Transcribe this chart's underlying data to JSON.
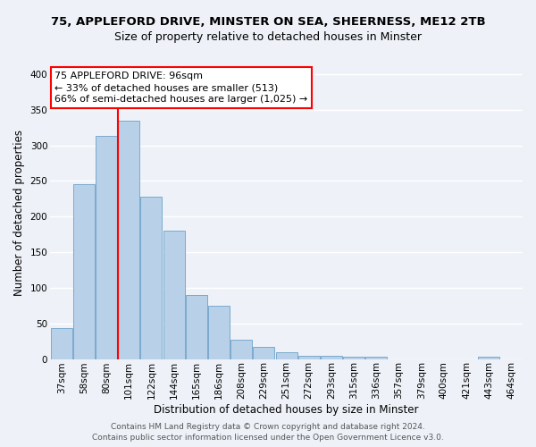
{
  "title": "75, APPLEFORD DRIVE, MINSTER ON SEA, SHEERNESS, ME12 2TB",
  "subtitle": "Size of property relative to detached houses in Minster",
  "xlabel": "Distribution of detached houses by size in Minster",
  "ylabel": "Number of detached properties",
  "bar_labels": [
    "37sqm",
    "58sqm",
    "80sqm",
    "101sqm",
    "122sqm",
    "144sqm",
    "165sqm",
    "186sqm",
    "208sqm",
    "229sqm",
    "251sqm",
    "272sqm",
    "293sqm",
    "315sqm",
    "336sqm",
    "357sqm",
    "379sqm",
    "400sqm",
    "421sqm",
    "443sqm",
    "464sqm"
  ],
  "bar_values": [
    43,
    245,
    313,
    335,
    228,
    180,
    90,
    75,
    27,
    17,
    10,
    4,
    5,
    3,
    3,
    0,
    0,
    0,
    0,
    3,
    0
  ],
  "bar_color": "#b8d0e8",
  "bar_edge_color": "#7aaacf",
  "vline_x": 2.5,
  "vline_color": "red",
  "ylim": [
    0,
    410
  ],
  "yticks": [
    0,
    50,
    100,
    150,
    200,
    250,
    300,
    350,
    400
  ],
  "annotation_line1": "75 APPLEFORD DRIVE: 96sqm",
  "annotation_line2": "← 33% of detached houses are smaller (513)",
  "annotation_line3": "66% of semi-detached houses are larger (1,025) →",
  "footer_line1": "Contains HM Land Registry data © Crown copyright and database right 2024.",
  "footer_line2": "Contains public sector information licensed under the Open Government Licence v3.0.",
  "background_color": "#eef2f8",
  "grid_color": "#ffffff",
  "title_fontsize": 9.5,
  "subtitle_fontsize": 9,
  "xlabel_fontsize": 8.5,
  "ylabel_fontsize": 8.5,
  "tick_fontsize": 7.5,
  "footer_fontsize": 6.5,
  "annotation_fontsize": 8
}
